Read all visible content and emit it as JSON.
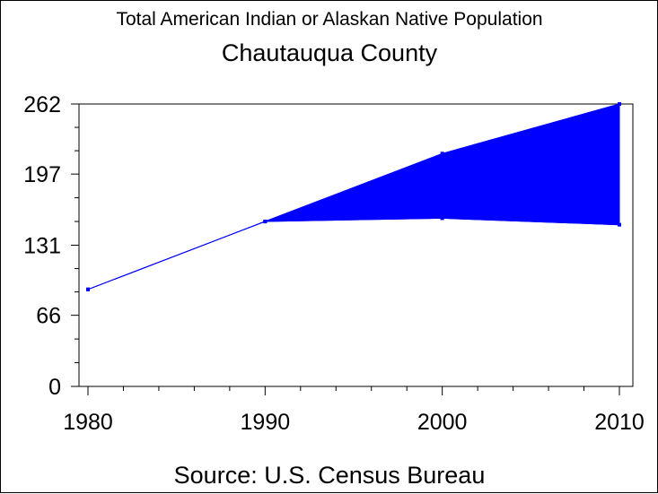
{
  "chart_data": {
    "type": "area",
    "title": "Total American Indian or Alaskan Native Population",
    "subtitle": "Chautauqua County",
    "source": "Source: U.S. Census Bureau",
    "x": [
      1980,
      1990,
      2000,
      2010
    ],
    "x_tick_labels": [
      "1980",
      "1990",
      "2000",
      "2010"
    ],
    "y_tick_labels": [
      "262",
      "197",
      "131",
      "66",
      "0"
    ],
    "y_ticks": [
      262,
      197,
      131,
      66,
      0
    ],
    "xlim": [
      1980,
      2010
    ],
    "ylim": [
      0,
      262
    ],
    "grid": false,
    "series": [
      {
        "values": [
          90,
          153,
          216,
          262
        ]
      },
      {
        "values": [
          90,
          153,
          156,
          150
        ]
      }
    ],
    "colors": {
      "fill": "#0000ff",
      "line": "#0000ff",
      "axis": "#000000"
    }
  }
}
